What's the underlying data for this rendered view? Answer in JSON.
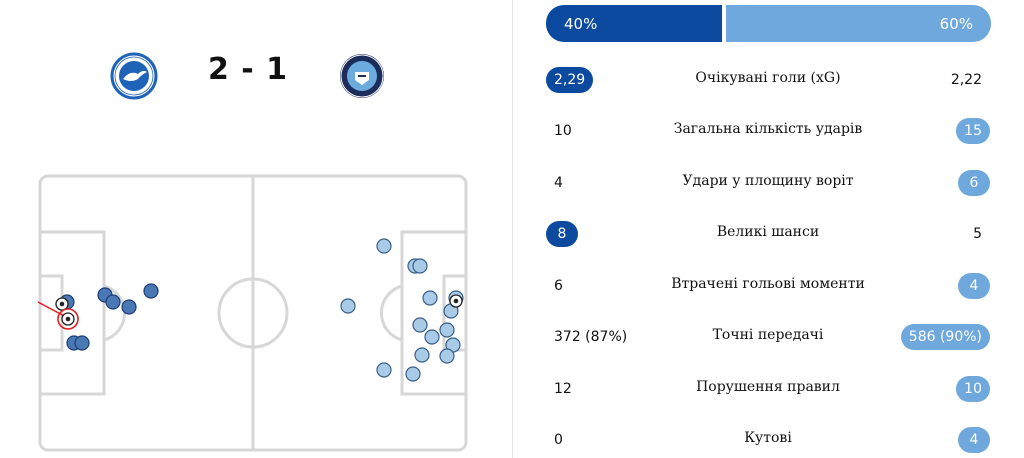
{
  "match": {
    "home_score": "2",
    "separator": "-",
    "away_score": "1",
    "home_crest": "brighton-crest",
    "away_crest": "manchester-city-crest"
  },
  "possession": {
    "home": "40%",
    "away": "60%",
    "home_value": 40,
    "away_value": 60
  },
  "colors": {
    "home": "#0b4a9e",
    "away": "#6fa8dc",
    "pitch_line": "#d7d7d7"
  },
  "stats": [
    {
      "label": "Очікувані голи (xG)",
      "home": "2,29",
      "away": "2,22",
      "highlight": "home"
    },
    {
      "label": "Загальна кількість ударів",
      "home": "10",
      "away": "15",
      "highlight": "away"
    },
    {
      "label": "Удари у площину воріт",
      "home": "4",
      "away": "6",
      "highlight": "away"
    },
    {
      "label": "Великі шанси",
      "home": "8",
      "away": "5",
      "highlight": "home"
    },
    {
      "label": "Втрачені гольові моменти",
      "home": "6",
      "away": "4",
      "highlight": "away"
    },
    {
      "label": "Точні передачі",
      "home": "372 (87%)",
      "away": "586 (90%)",
      "highlight": "away"
    },
    {
      "label": "Порушення правил",
      "home": "12",
      "away": "10",
      "highlight": "away"
    },
    {
      "label": "Кутові",
      "home": "0",
      "away": "4",
      "highlight": "away"
    }
  ]
}
